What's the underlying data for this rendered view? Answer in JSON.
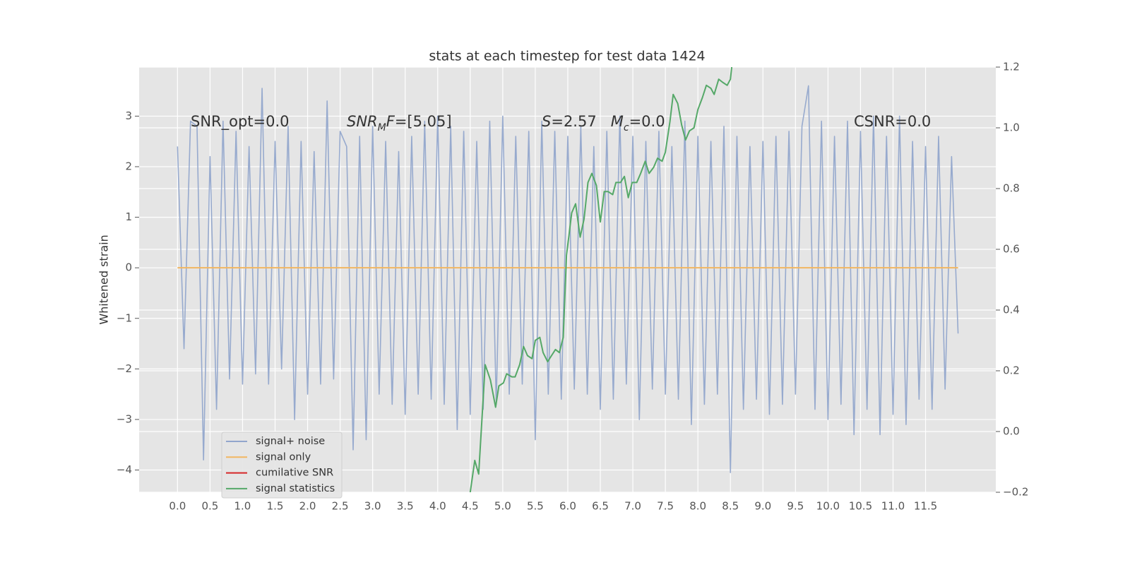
{
  "chart_data": {
    "type": "line",
    "title": "stats at each timestep for test data 1424",
    "ylabel": "Whitened strain",
    "xlim": [
      -0.59,
      12.58
    ],
    "ylim": [
      -4.44,
      3.97
    ],
    "y2lim": [
      -0.2,
      1.2
    ],
    "xticks": [
      {
        "value": 0,
        "label": "0.0"
      },
      0.5,
      {
        "value": 1,
        "label": "1.0"
      },
      1.5,
      {
        "value": 2,
        "label": "2.0"
      },
      2.5,
      {
        "value": 3,
        "label": "3.0"
      },
      3.5,
      {
        "value": 4,
        "label": "4.0"
      },
      4.5,
      {
        "value": 5,
        "label": "5.0"
      },
      5.5,
      {
        "value": 6,
        "label": "6.0"
      },
      6.5,
      {
        "value": 7,
        "label": "7.0"
      },
      7.5,
      {
        "value": 8,
        "label": "8.0"
      },
      8.5,
      {
        "value": 9,
        "label": "9.0"
      },
      9.5,
      {
        "value": 10,
        "label": "10.0"
      },
      10.5,
      {
        "value": 11,
        "label": "11.0"
      },
      11.5
    ],
    "yticks": [
      {
        "value": -4,
        "label": "−4"
      },
      {
        "value": -3,
        "label": "−3"
      },
      {
        "value": -2,
        "label": "−2"
      },
      {
        "value": -1,
        "label": "−1"
      },
      0,
      1,
      2,
      3
    ],
    "y2ticks": [
      {
        "value": -0.2,
        "label": "−0.2"
      },
      {
        "value": 0,
        "label": "0.0"
      },
      0.2,
      0.4,
      0.6,
      0.8,
      {
        "value": 1,
        "label": "1.0"
      },
      1.2
    ],
    "grid": true,
    "annotations": [
      [
        {
          "text": "SNR_opt=0.0"
        }
      ],
      [
        {
          "text": "SNR",
          "italic": true
        },
        {
          "text": "M",
          "italic": true,
          "sub": true
        },
        {
          "text": "F",
          "italic": true
        },
        {
          "text": "=[5.05]"
        }
      ],
      [
        {
          "text": "S",
          "italic": true
        },
        {
          "text": "=2.57   "
        },
        {
          "text": "M",
          "italic": true
        },
        {
          "text": "c",
          "italic": true,
          "sub": true
        },
        {
          "text": "=0.0"
        }
      ],
      [
        {
          "text": "CSNR=0.0"
        }
      ]
    ],
    "series": [
      {
        "name": "signal+ noise",
        "color": "#92a6cc",
        "x": [
          0.0,
          0.1,
          0.2,
          0.3,
          0.4,
          0.5,
          0.6,
          0.7,
          0.8,
          0.9,
          1.0,
          1.1,
          1.2,
          1.3,
          1.4,
          1.5,
          1.6,
          1.7,
          1.8,
          1.9,
          2.0,
          2.1,
          2.2,
          2.3,
          2.4,
          2.5,
          2.6,
          2.7,
          2.8,
          2.9,
          3.0,
          3.1,
          3.2,
          3.3,
          3.4,
          3.5,
          3.6,
          3.7,
          3.8,
          3.9,
          4.0,
          4.1,
          4.2,
          4.3,
          4.4,
          4.5,
          4.6,
          4.7,
          4.8,
          4.9,
          5.0,
          5.1,
          5.2,
          5.3,
          5.4,
          5.5,
          5.6,
          5.7,
          5.8,
          5.9,
          6.0,
          6.1,
          6.2,
          6.3,
          6.4,
          6.5,
          6.6,
          6.7,
          6.8,
          6.9,
          7.0,
          7.1,
          7.2,
          7.3,
          7.4,
          7.5,
          7.6,
          7.7,
          7.8,
          7.9,
          8.0,
          8.1,
          8.2,
          8.3,
          8.4,
          8.5,
          8.6,
          8.7,
          8.8,
          8.9,
          9.0,
          9.1,
          9.2,
          9.3,
          9.4,
          9.5,
          9.6,
          9.7,
          9.8,
          9.9,
          10.0,
          10.1,
          10.2,
          10.3,
          10.4,
          10.5,
          10.6,
          10.7,
          10.8,
          10.9,
          11.0,
          11.1,
          11.2,
          11.3,
          11.4,
          11.5,
          11.6,
          11.7,
          11.8,
          11.9,
          12.0
        ],
        "values": [
          2.4,
          -1.6,
          2.9,
          2.8,
          -3.8,
          2.2,
          -2.8,
          2.9,
          -2.2,
          2.7,
          -2.3,
          2.4,
          -2.1,
          3.55,
          -2.3,
          2.5,
          -2.0,
          2.8,
          -3.0,
          2.5,
          -2.5,
          2.3,
          -2.3,
          3.3,
          -2.2,
          2.7,
          2.4,
          -3.6,
          2.6,
          -3.4,
          2.8,
          -2.5,
          2.5,
          -2.7,
          2.3,
          -2.9,
          2.6,
          -2.5,
          2.9,
          -2.6,
          3.0,
          -2.7,
          2.8,
          -3.2,
          2.7,
          -2.9,
          2.5,
          -2.8,
          2.9,
          -2.7,
          3.0,
          -2.5,
          2.6,
          -2.3,
          2.7,
          -3.4,
          2.9,
          -2.5,
          2.7,
          -2.6,
          2.6,
          -2.4,
          2.8,
          -2.5,
          2.4,
          -2.8,
          2.7,
          -2.6,
          3.0,
          -2.3,
          2.6,
          -3.0,
          2.5,
          -2.4,
          2.7,
          -2.5,
          2.4,
          -2.6,
          2.9,
          -3.1,
          2.6,
          -2.7,
          2.5,
          -2.5,
          2.8,
          -4.05,
          2.6,
          -2.8,
          2.4,
          -2.6,
          2.5,
          -2.9,
          2.6,
          -2.7,
          2.7,
          -2.5,
          2.8,
          3.6,
          -2.8,
          2.9,
          -3.0,
          2.6,
          -2.7,
          2.9,
          -3.3,
          2.7,
          -2.8,
          3.0,
          -3.3,
          2.6,
          -2.9,
          3.0,
          -3.1,
          2.5,
          -2.6,
          2.4,
          -2.8,
          2.6,
          -2.4,
          2.2,
          -1.3
        ]
      },
      {
        "name": "signal only",
        "color": "#f2b661",
        "x": [
          0,
          12
        ],
        "values": [
          0,
          0
        ]
      },
      {
        "name": "cumilative SNR",
        "color": "#d62728"
      },
      {
        "name": "signal statistics",
        "color": "#55a868",
        "axis": "y2",
        "x": [
          4.5,
          4.57,
          4.63,
          4.73,
          4.81,
          4.89,
          4.94,
          5.01,
          5.06,
          5.14,
          5.19,
          5.26,
          5.32,
          5.38,
          5.45,
          5.5,
          5.57,
          5.62,
          5.69,
          5.75,
          5.81,
          5.87,
          5.93,
          5.98,
          6.06,
          6.12,
          6.19,
          6.25,
          6.31,
          6.37,
          6.44,
          6.5,
          6.56,
          6.62,
          6.69,
          6.74,
          6.81,
          6.87,
          6.93,
          6.99,
          7.06,
          7.12,
          7.19,
          7.25,
          7.32,
          7.38,
          7.45,
          7.5,
          7.57,
          7.62,
          7.69,
          7.75,
          7.81,
          7.87,
          7.94,
          8.0,
          8.07,
          8.13,
          8.2,
          8.25,
          8.32,
          8.38,
          8.45,
          8.5,
          8.52
        ],
        "values": [
          -0.2,
          -0.095,
          -0.14,
          0.22,
          0.17,
          0.08,
          0.15,
          0.16,
          0.19,
          0.18,
          0.18,
          0.22,
          0.28,
          0.25,
          0.24,
          0.3,
          0.31,
          0.26,
          0.23,
          0.25,
          0.27,
          0.26,
          0.31,
          0.58,
          0.72,
          0.75,
          0.64,
          0.7,
          0.82,
          0.85,
          0.81,
          0.69,
          0.79,
          0.79,
          0.78,
          0.82,
          0.82,
          0.84,
          0.77,
          0.82,
          0.82,
          0.85,
          0.89,
          0.85,
          0.87,
          0.9,
          0.89,
          0.92,
          1.02,
          1.11,
          1.08,
          1.01,
          0.96,
          0.99,
          1.0,
          1.06,
          1.1,
          1.14,
          1.13,
          1.11,
          1.16,
          1.15,
          1.14,
          1.16,
          1.2
        ]
      }
    ]
  }
}
